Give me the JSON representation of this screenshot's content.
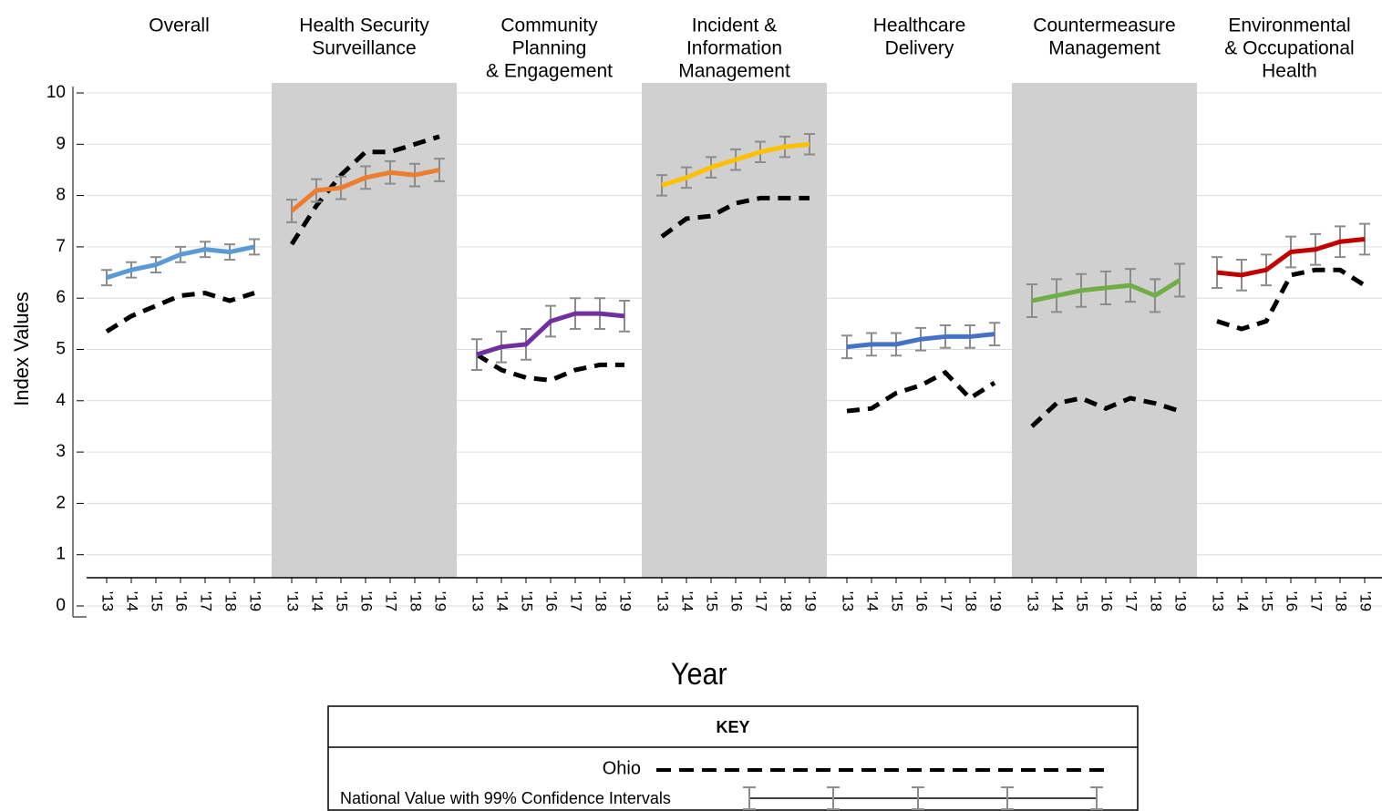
{
  "chart_data": {
    "type": "line",
    "ylabel": "Index Values",
    "xlabel": "Year",
    "ylim": [
      0,
      10
    ],
    "yticks": [
      0,
      1,
      2,
      3,
      4,
      5,
      6,
      7,
      8,
      9,
      10
    ],
    "grid": true,
    "categories": [
      "'13",
      "'14",
      "'15",
      "'16",
      "'17",
      "'18",
      "'19"
    ],
    "panels": [
      {
        "title": [
          "Overall"
        ],
        "shaded": false,
        "national": {
          "color": "#5b9bd5",
          "values": [
            6.4,
            6.55,
            6.65,
            6.85,
            6.95,
            6.9,
            7.0
          ],
          "errors": [
            0.15,
            0.15,
            0.15,
            0.15,
            0.15,
            0.15,
            0.15
          ]
        },
        "ohio": {
          "color": "#000000",
          "values": [
            5.35,
            5.65,
            5.85,
            6.05,
            6.1,
            5.95,
            6.1
          ]
        }
      },
      {
        "title": [
          "Health Security",
          "Surveillance"
        ],
        "shaded": true,
        "national": {
          "color": "#ed7d31",
          "values": [
            7.7,
            8.1,
            8.15,
            8.35,
            8.45,
            8.4,
            8.5
          ],
          "errors": [
            0.22,
            0.22,
            0.22,
            0.22,
            0.22,
            0.22,
            0.22
          ]
        },
        "ohio": {
          "color": "#000000",
          "values": [
            7.05,
            7.8,
            8.4,
            8.85,
            8.85,
            9.0,
            9.15
          ]
        }
      },
      {
        "title": [
          "Community",
          "Planning",
          "& Engagement"
        ],
        "shaded": false,
        "national": {
          "color": "#7030a0",
          "values": [
            4.9,
            5.05,
            5.1,
            5.55,
            5.7,
            5.7,
            5.65
          ],
          "errors": [
            0.3,
            0.3,
            0.3,
            0.3,
            0.3,
            0.3,
            0.3
          ]
        },
        "ohio": {
          "color": "#000000",
          "values": [
            4.9,
            4.6,
            4.45,
            4.4,
            4.6,
            4.7,
            4.7
          ]
        }
      },
      {
        "title": [
          "Incident &",
          "Information",
          "Management"
        ],
        "shaded": true,
        "national": {
          "color": "#ffc000",
          "values": [
            8.2,
            8.35,
            8.55,
            8.7,
            8.85,
            8.95,
            9.0
          ],
          "errors": [
            0.2,
            0.2,
            0.2,
            0.2,
            0.2,
            0.2,
            0.2
          ]
        },
        "ohio": {
          "color": "#000000",
          "values": [
            7.2,
            7.55,
            7.6,
            7.85,
            7.95,
            7.95,
            7.95
          ]
        }
      },
      {
        "title": [
          "Healthcare",
          "Delivery"
        ],
        "shaded": false,
        "national": {
          "color": "#4472c4",
          "values": [
            5.05,
            5.1,
            5.1,
            5.2,
            5.25,
            5.25,
            5.3
          ],
          "errors": [
            0.22,
            0.22,
            0.22,
            0.22,
            0.22,
            0.22,
            0.22
          ]
        },
        "ohio": {
          "color": "#000000",
          "values": [
            3.8,
            3.85,
            4.15,
            4.3,
            4.55,
            4.05,
            4.35
          ]
        }
      },
      {
        "title": [
          "Countermeasure",
          "Management"
        ],
        "shaded": true,
        "national": {
          "color": "#70ad47",
          "values": [
            5.95,
            6.05,
            6.15,
            6.2,
            6.25,
            6.05,
            6.35
          ],
          "errors": [
            0.32,
            0.32,
            0.32,
            0.32,
            0.32,
            0.32,
            0.32
          ]
        },
        "ohio": {
          "color": "#000000",
          "values": [
            3.5,
            3.95,
            4.05,
            3.85,
            4.05,
            3.95,
            3.8
          ]
        }
      },
      {
        "title": [
          "Environmental",
          "& Occupational",
          "Health"
        ],
        "shaded": false,
        "national": {
          "color": "#c00000",
          "values": [
            6.5,
            6.45,
            6.55,
            6.9,
            6.95,
            7.1,
            7.15
          ],
          "errors": [
            0.3,
            0.3,
            0.3,
            0.3,
            0.3,
            0.3,
            0.3
          ]
        },
        "ohio": {
          "color": "#000000",
          "values": [
            5.55,
            5.4,
            5.55,
            6.45,
            6.55,
            6.55,
            6.25
          ]
        }
      }
    ],
    "key": {
      "title": "KEY",
      "ohio_label": "Ohio",
      "national_label": "National Value with 99% Confidence Intervals"
    }
  }
}
